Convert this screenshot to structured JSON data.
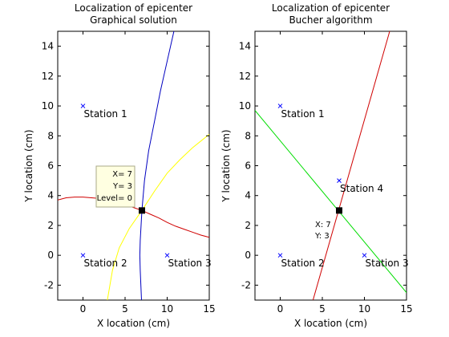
{
  "colors": {
    "blue": "#0000c0",
    "yellow": "#ffff00",
    "red": "#d00000",
    "green": "#00dd00",
    "station_marker": "#0000ff",
    "tooltip_bg": "#ffffe1",
    "tooltip_border": "#aaaa88",
    "epicenter": "#000000"
  },
  "chart_data": [
    {
      "type": "line",
      "title": "Localization of epicenter",
      "subtitle": "Graphical solution",
      "xlabel": "X location (cm)",
      "ylabel": "Y location (cm)",
      "xlim": [
        -3,
        15
      ],
      "ylim": [
        -3,
        15
      ],
      "xticks": [
        0,
        5,
        10,
        15
      ],
      "yticks": [
        -2,
        0,
        2,
        4,
        6,
        8,
        10,
        12,
        14
      ],
      "grid": false,
      "stations": [
        {
          "name": "Station 1",
          "x": 0,
          "y": 10
        },
        {
          "name": "Station 2",
          "x": 0,
          "y": 0
        },
        {
          "name": "Station 3",
          "x": 10,
          "y": 0
        }
      ],
      "epicenter": {
        "x": 7,
        "y": 3
      },
      "datatip": {
        "x_text": "X= 7",
        "y_text": "Y= 3",
        "level_text": "Level= 0"
      },
      "series": [
        {
          "color": "blue",
          "points": [
            [
              6.95,
              -3
            ],
            [
              6.8,
              -1
            ],
            [
              6.75,
              0
            ],
            [
              6.8,
              1
            ],
            [
              7.0,
              3
            ],
            [
              7.3,
              5
            ],
            [
              7.8,
              7
            ],
            [
              8.5,
              9
            ],
            [
              9.2,
              11
            ],
            [
              10.0,
              13
            ],
            [
              10.8,
              15
            ]
          ]
        },
        {
          "color": "yellow",
          "points": [
            [
              2.9,
              -3
            ],
            [
              3.5,
              -1
            ],
            [
              4.3,
              0.5
            ],
            [
              5.5,
              1.8
            ],
            [
              7.0,
              3
            ],
            [
              8.5,
              4.3
            ],
            [
              10.0,
              5.5
            ],
            [
              11.5,
              6.4
            ],
            [
              13.0,
              7.2
            ],
            [
              15.0,
              8.1
            ]
          ]
        },
        {
          "color": "red",
          "points": [
            [
              -3,
              3.7
            ],
            [
              -2,
              3.85
            ],
            [
              -1,
              3.9
            ],
            [
              0,
              3.9
            ],
            [
              1,
              3.85
            ],
            [
              2,
              3.8
            ],
            [
              3,
              3.7
            ],
            [
              4,
              3.55
            ],
            [
              5,
              3.4
            ],
            [
              6,
              3.2
            ],
            [
              7,
              3.0
            ],
            [
              8,
              2.75
            ],
            [
              9,
              2.5
            ],
            [
              10,
              2.2
            ],
            [
              11,
              1.95
            ],
            [
              12,
              1.75
            ],
            [
              13,
              1.55
            ],
            [
              14,
              1.35
            ],
            [
              15,
              1.2
            ]
          ]
        }
      ]
    },
    {
      "type": "line",
      "title": "Localization of epicenter",
      "subtitle": "Bucher algorithm",
      "xlabel": "X location (cm)",
      "ylabel": "Y location (cm)",
      "xlim": [
        -3,
        15
      ],
      "ylim": [
        -3,
        15
      ],
      "xticks": [
        0,
        5,
        10,
        15
      ],
      "yticks": [
        -2,
        0,
        2,
        4,
        6,
        8,
        10,
        12,
        14
      ],
      "grid": false,
      "stations": [
        {
          "name": "Station 1",
          "x": 0,
          "y": 10
        },
        {
          "name": "Station 2",
          "x": 0,
          "y": 0
        },
        {
          "name": "Station 3",
          "x": 10,
          "y": 0
        },
        {
          "name": "Station 4",
          "x": 7,
          "y": 5
        }
      ],
      "epicenter": {
        "x": 7,
        "y": 3
      },
      "point_label": {
        "x_text": "X: 7",
        "y_text": "Y: 3"
      },
      "series": [
        {
          "color": "red",
          "points": [
            [
              3.9,
              -3
            ],
            [
              13.0,
              15
            ]
          ]
        },
        {
          "color": "green",
          "points": [
            [
              -3,
              9.7
            ],
            [
              15,
              -2.5
            ]
          ]
        }
      ]
    }
  ]
}
